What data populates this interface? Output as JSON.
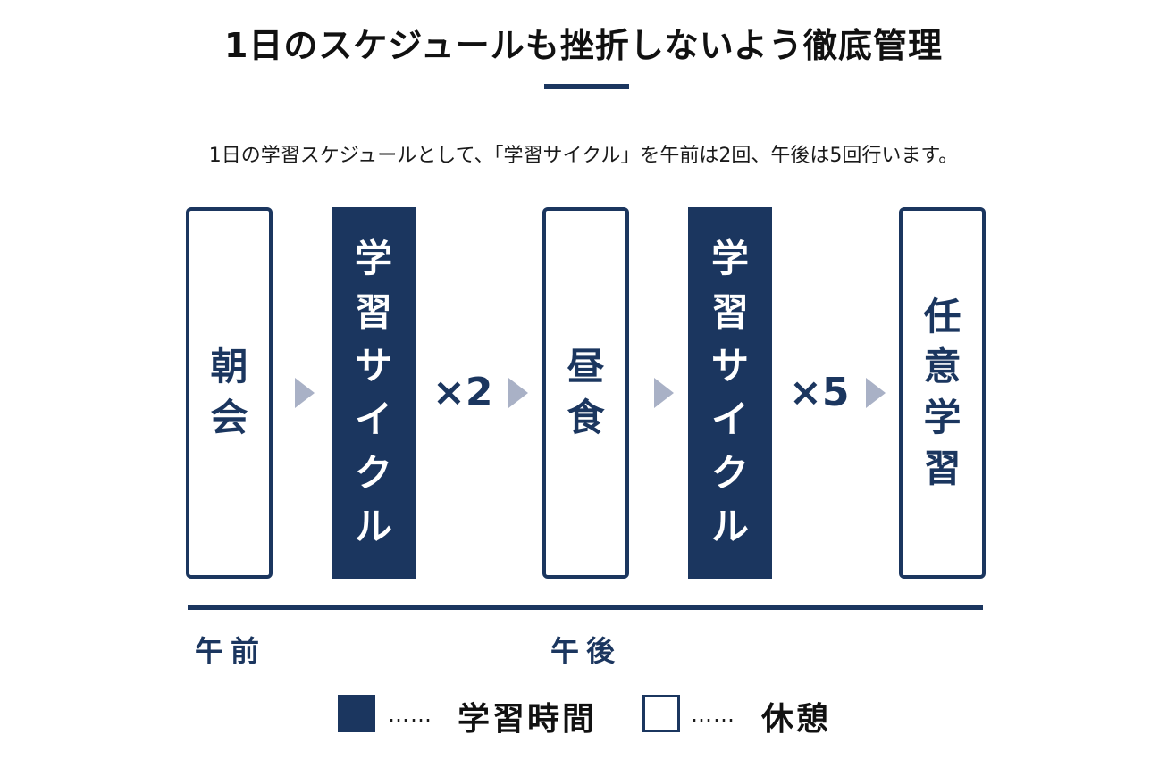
{
  "header": {
    "title": "1日のスケジュールも挫折しないよう徹底管理",
    "subtitle": "1日の学習スケジュールとして、「学習サイクル」を午前は2回、午後は5回行います。"
  },
  "flow": {
    "steps": [
      {
        "label": "朝会",
        "type": "rest"
      },
      {
        "label": "学習サイクル",
        "type": "study"
      },
      {
        "label": "昼食",
        "type": "rest"
      },
      {
        "label": "学習サイクル",
        "type": "study"
      },
      {
        "label": "任意学習",
        "type": "rest"
      }
    ],
    "multipliers": [
      "×2",
      "×5"
    ]
  },
  "timeline": {
    "morning": "午前",
    "afternoon": "午後"
  },
  "legend": {
    "study": {
      "dots": "……",
      "label": "学習時間"
    },
    "rest": {
      "dots": "……",
      "label": "休憩"
    }
  },
  "colors": {
    "navy": "#1b365f",
    "arrow": "#a9b1c6"
  }
}
